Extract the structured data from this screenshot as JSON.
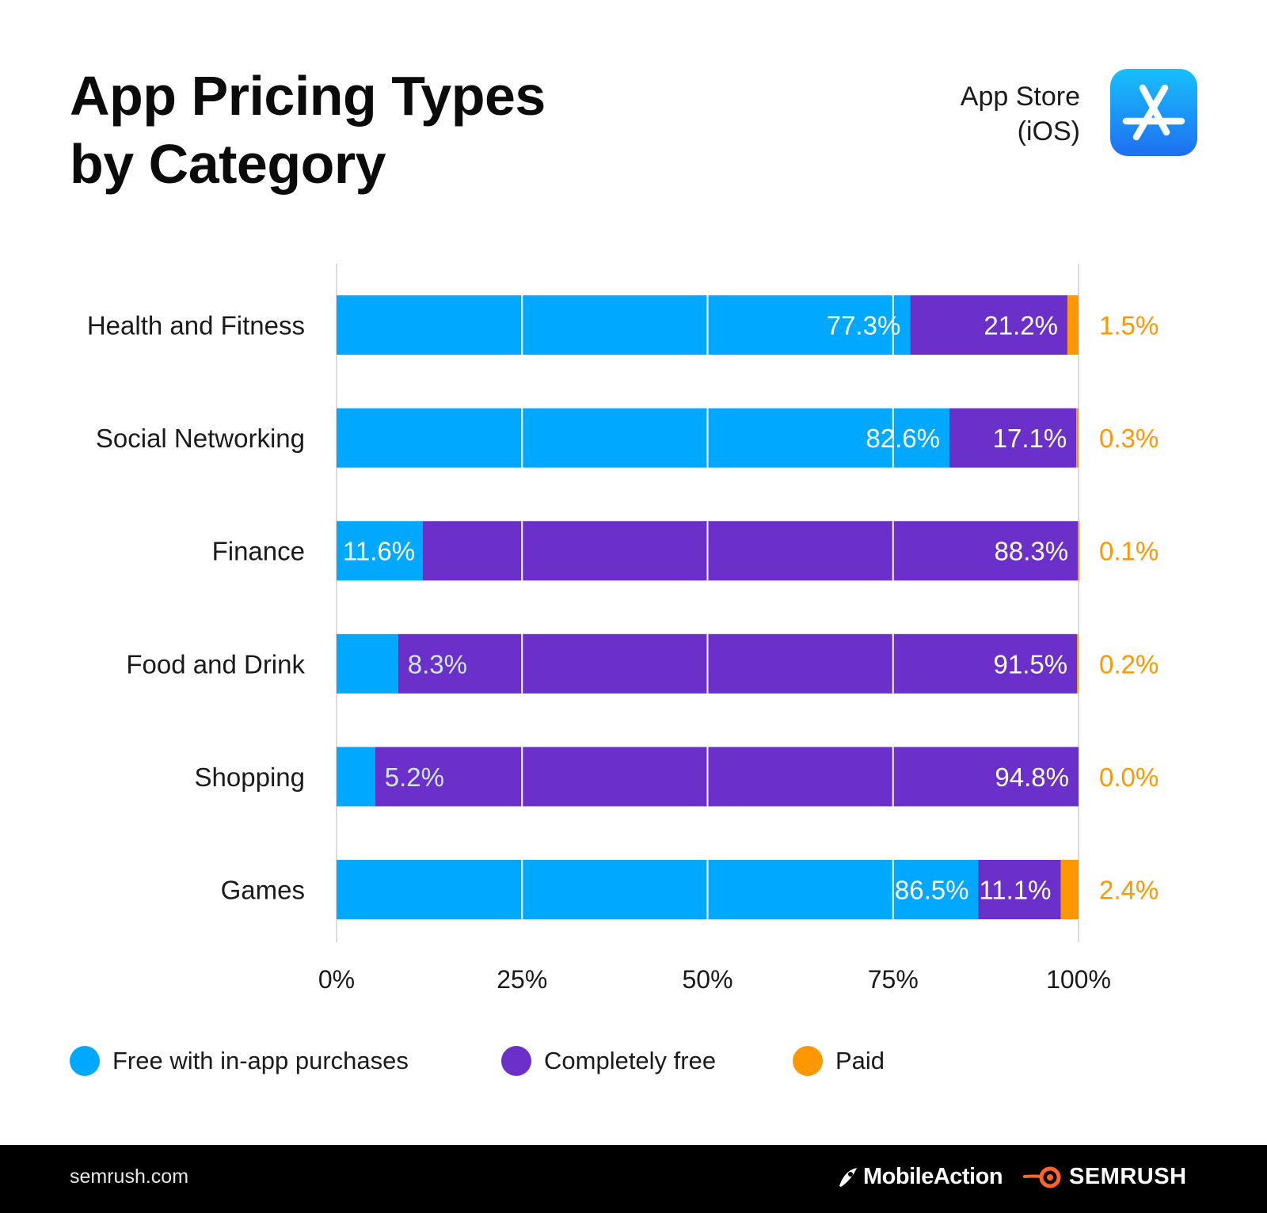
{
  "header": {
    "title_line1": "App Pricing Types",
    "title_line2": "by Category",
    "store_line1": "App Store",
    "store_line2": "(iOS)",
    "store_icon": "app-store-icon"
  },
  "colors": {
    "free_iap": "#00a8ff",
    "completely_free": "#6a30c9",
    "paid": "#ff9800",
    "paid_label": "#ff9800",
    "free_label": "#ffffff",
    "small_label": "#cfe7ff"
  },
  "chart_data": {
    "type": "bar",
    "orientation": "horizontal",
    "stacked": true,
    "categories": [
      "Health and Fitness",
      "Social Networking",
      "Finance",
      "Food and Drink",
      "Shopping",
      "Games"
    ],
    "series": [
      {
        "name": "Free with in-app purchases",
        "values": [
          77.3,
          82.6,
          11.6,
          8.3,
          5.2,
          86.5
        ],
        "labels": [
          "77.3%",
          "82.6%",
          "11.6%",
          "8.3%",
          "5.2%",
          "86.5%"
        ]
      },
      {
        "name": "Completely free",
        "values": [
          21.2,
          17.1,
          88.3,
          91.5,
          94.8,
          11.1
        ],
        "labels": [
          "21.2%",
          "17.1%",
          "88.3%",
          "91.5%",
          "94.8%",
          "11.1%"
        ]
      },
      {
        "name": "Paid",
        "values": [
          1.5,
          0.3,
          0.1,
          0.2,
          0.0,
          2.4
        ],
        "labels": [
          "1.5%",
          "0.3%",
          "0.1%",
          "0.2%",
          "0.0%",
          "2.4%"
        ]
      }
    ],
    "x_ticks": [
      "0%",
      "25%",
      "50%",
      "75%",
      "100%"
    ],
    "xlim": [
      0,
      100
    ],
    "grid": true,
    "legend_position": "bottom"
  },
  "legend": {
    "items": [
      {
        "label": "Free with in-app purchases",
        "color": "#00a8ff"
      },
      {
        "label": "Completely free",
        "color": "#6a30c9"
      },
      {
        "label": "Paid",
        "color": "#ff9800"
      }
    ]
  },
  "footer": {
    "site": "semrush.com",
    "brand1": "MobileAction",
    "brand2": "SEMRUSH",
    "brand1_icon": "mobileaction-logo-icon",
    "brand2_icon": "semrush-logo-icon"
  }
}
